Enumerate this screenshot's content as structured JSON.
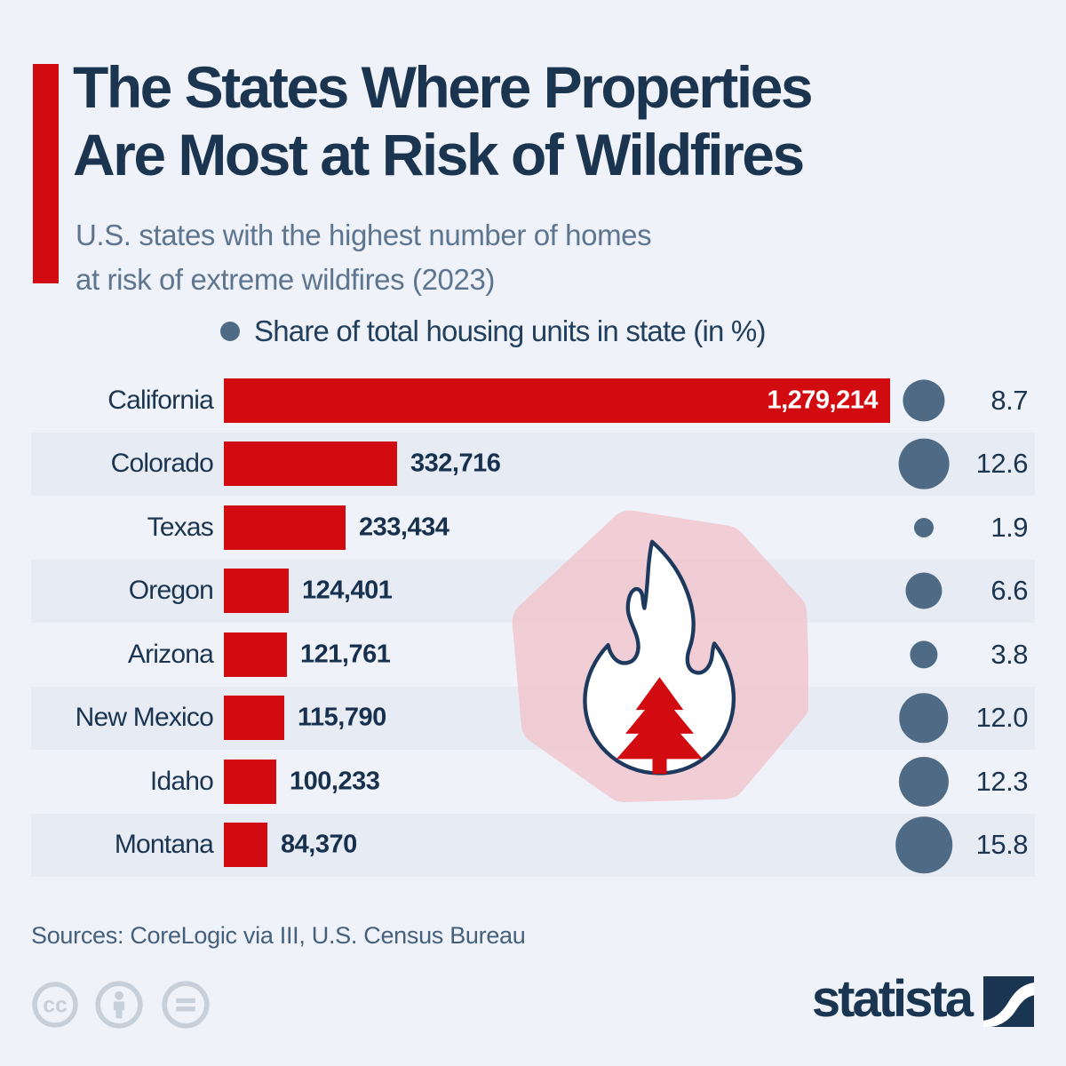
{
  "header": {
    "title_line1": "The States Where Properties",
    "title_line2": "Are Most at Risk of Wildfires",
    "subtitle_line1": "U.S. states with the highest number of homes",
    "subtitle_line2": "at risk of extreme wildfires (2023)"
  },
  "legend": {
    "label": "Share of total housing units in state (in %)"
  },
  "chart_data": {
    "type": "bar",
    "title": "The States Where Properties Are Most at Risk of Wildfires",
    "subtitle": "U.S. states with the highest number of homes at risk of extreme wildfires (2023)",
    "orientation": "horizontal",
    "xlim": [
      0,
      1279214
    ],
    "grid": false,
    "legend_position": "top-center",
    "categories": [
      "California",
      "Colorado",
      "Texas",
      "Oregon",
      "Arizona",
      "New Mexico",
      "Idaho",
      "Montana"
    ],
    "series": [
      {
        "name": "Homes at risk of extreme wildfires",
        "values": [
          1279214,
          332716,
          233434,
          124401,
          121761,
          115790,
          100233,
          84370
        ]
      },
      {
        "name": "Share of total housing units in state (in %)",
        "values": [
          8.7,
          12.6,
          1.9,
          6.6,
          3.8,
          12.0,
          12.3,
          15.8
        ]
      }
    ],
    "rows": [
      {
        "state": "California",
        "homes_value": 1279214,
        "homes_label": "1,279,214",
        "share_value": 8.7,
        "share_label": "8.7",
        "striped": false,
        "value_inside": true
      },
      {
        "state": "Colorado",
        "homes_value": 332716,
        "homes_label": "332,716",
        "share_value": 12.6,
        "share_label": "12.6",
        "striped": true,
        "value_inside": false
      },
      {
        "state": "Texas",
        "homes_value": 233434,
        "homes_label": "233,434",
        "share_value": 1.9,
        "share_label": "1.9",
        "striped": false,
        "value_inside": false
      },
      {
        "state": "Oregon",
        "homes_value": 124401,
        "homes_label": "124,401",
        "share_value": 6.6,
        "share_label": "6.6",
        "striped": true,
        "value_inside": false
      },
      {
        "state": "Arizona",
        "homes_value": 121761,
        "homes_label": "121,761",
        "share_value": 3.8,
        "share_label": "3.8",
        "striped": false,
        "value_inside": false
      },
      {
        "state": "New Mexico",
        "homes_value": 115790,
        "homes_label": "115,790",
        "share_value": 12.0,
        "share_label": "12.0",
        "striped": true,
        "value_inside": false
      },
      {
        "state": "Idaho",
        "homes_value": 100233,
        "homes_label": "100,233",
        "share_value": 12.3,
        "share_label": "12.3",
        "striped": false,
        "value_inside": false
      },
      {
        "state": "Montana",
        "homes_value": 84370,
        "homes_label": "84,370",
        "share_value": 15.8,
        "share_label": "15.8",
        "striped": true,
        "value_inside": false
      }
    ]
  },
  "footer": {
    "sources": "Sources: CoreLogic via III, U.S. Census Bureau",
    "brand": "statista",
    "license_icons": [
      "cc-icon",
      "attribution-icon",
      "equals-icon"
    ]
  },
  "colors": {
    "background": "#eff3f9",
    "stripe": "#e6ebf4",
    "bar_red": "#d20b10",
    "bubble_slate": "#4e6a85",
    "title_navy": "#1b3450",
    "subtitle_gray": "#5e7590",
    "icon_pink": "#f2c3cc",
    "flame_outline": "#1d3a5e",
    "license_gray": "#c6cfda"
  }
}
